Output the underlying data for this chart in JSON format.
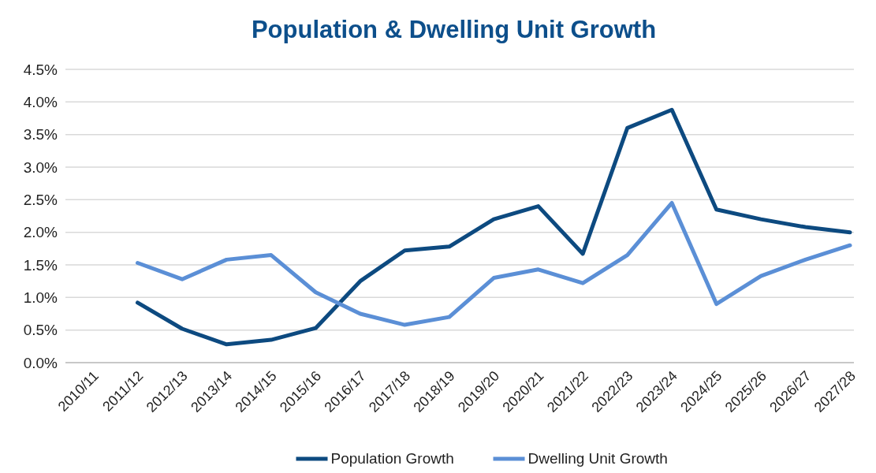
{
  "chart_data": {
    "type": "line",
    "title": "Population & Dwelling Unit Growth",
    "categories": [
      "2010/11",
      "2011/12",
      "2012/13",
      "2013/14",
      "2014/15",
      "2015/16",
      "2016/17",
      "2017/18",
      "2018/19",
      "2019/20",
      "2020/21",
      "2021/22",
      "2022/23",
      "2023/24",
      "2024/25",
      "2025/26",
      "2026/27",
      "2027/28"
    ],
    "series": [
      {
        "name": "Population Growth",
        "color": "#0d4a80",
        "values": [
          null,
          0.92,
          0.52,
          0.28,
          0.35,
          0.53,
          1.25,
          1.72,
          1.78,
          2.2,
          2.4,
          1.67,
          3.6,
          3.88,
          2.35,
          2.2,
          2.08,
          2.0
        ]
      },
      {
        "name": "Dwelling Unit Growth",
        "color": "#5b8fd6",
        "values": [
          null,
          1.53,
          1.28,
          1.58,
          1.65,
          1.08,
          0.75,
          0.58,
          0.7,
          1.3,
          1.43,
          1.22,
          1.65,
          2.45,
          0.9,
          1.33,
          1.58,
          1.8
        ]
      }
    ],
    "ylim": [
      0,
      4.5
    ],
    "yticks": [
      {
        "value": 0,
        "label": "0.0%"
      },
      {
        "value": 0.5,
        "label": "0.5%"
      },
      {
        "value": 1,
        "label": "1.0%"
      },
      {
        "value": 1.5,
        "label": "1.5%"
      },
      {
        "value": 2,
        "label": "2.0%"
      },
      {
        "value": 2.5,
        "label": "2.5%"
      },
      {
        "value": 3,
        "label": "3.0%"
      },
      {
        "value": 3.5,
        "label": "3.5%"
      },
      {
        "value": 4,
        "label": "4.0%"
      },
      {
        "value": 4.5,
        "label": "4.5%"
      }
    ],
    "grid": "y",
    "legend": "bottom",
    "marker": "none",
    "line_style": "solid"
  }
}
